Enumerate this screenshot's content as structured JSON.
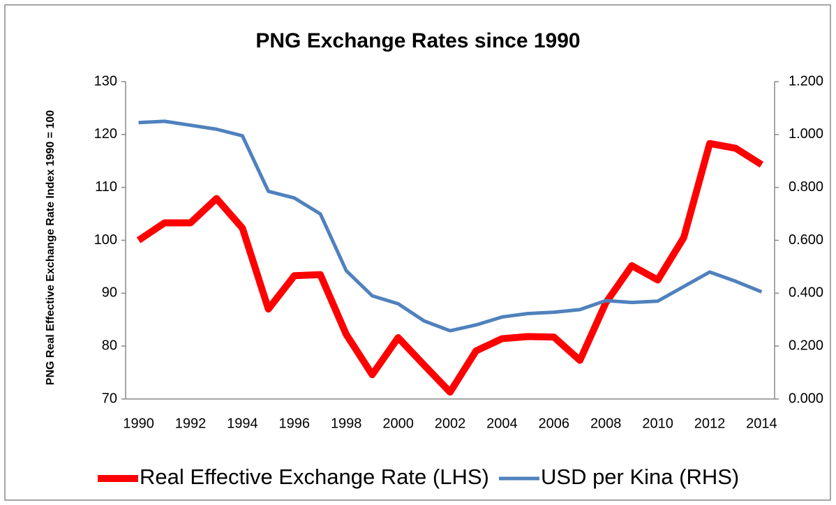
{
  "chart_data": {
    "type": "line",
    "title": "PNG Exchange Rates since 1990",
    "y_label": "PNG Real Effective Exchange Rate Index 1990 = 100",
    "x": [
      1990,
      1991,
      1992,
      1993,
      1994,
      1995,
      1996,
      1997,
      1998,
      1999,
      2000,
      2001,
      2002,
      2003,
      2004,
      2005,
      2006,
      2007,
      2008,
      2009,
      2010,
      2011,
      2012,
      2013,
      2014
    ],
    "xlim": [
      1989.5,
      2014.5
    ],
    "xticks": [
      1990,
      1992,
      1994,
      1996,
      1998,
      2000,
      2002,
      2004,
      2006,
      2008,
      2010,
      2012,
      2014
    ],
    "ylim": [
      70,
      130
    ],
    "yticks": [
      70,
      80,
      90,
      100,
      110,
      120,
      130
    ],
    "y2lim": [
      0,
      1.2
    ],
    "y2ticks": [
      {
        "value": 0,
        "label": "0.000"
      },
      {
        "value": 0.2,
        "label": "0.200"
      },
      {
        "value": 0.4,
        "label": "0.400"
      },
      {
        "value": 0.6,
        "label": "0.600"
      },
      {
        "value": 0.8,
        "label": "0.800"
      },
      {
        "value": 1,
        "label": "1.000"
      },
      {
        "value": 1.2,
        "label": "1.200"
      }
    ],
    "grid": false,
    "legend": "bottom",
    "series": [
      {
        "name": "Real Effective Exchange Rate (LHS)",
        "color": "#ff0000",
        "axis": "y",
        "values": [
          100,
          103.3,
          103.3,
          107.9,
          102.3,
          87,
          93.3,
          93.5,
          82.2,
          74.6,
          81.6,
          76.4,
          71.3,
          79.1,
          81.4,
          81.8,
          81.7,
          77.3,
          88.2,
          95.2,
          92.5,
          100.5,
          118.3,
          117.4,
          114.3
        ]
      },
      {
        "name": "USD per Kina (RHS)",
        "color": "#4f81bd",
        "axis": "y2",
        "values": [
          1.045,
          1.05,
          1.035,
          1.02,
          0.995,
          0.785,
          0.76,
          0.7,
          0.485,
          0.39,
          0.36,
          0.295,
          0.258,
          0.28,
          0.31,
          0.323,
          0.328,
          0.338,
          0.372,
          0.365,
          0.37,
          0.425,
          0.48,
          0.445,
          0.405
        ]
      }
    ]
  }
}
